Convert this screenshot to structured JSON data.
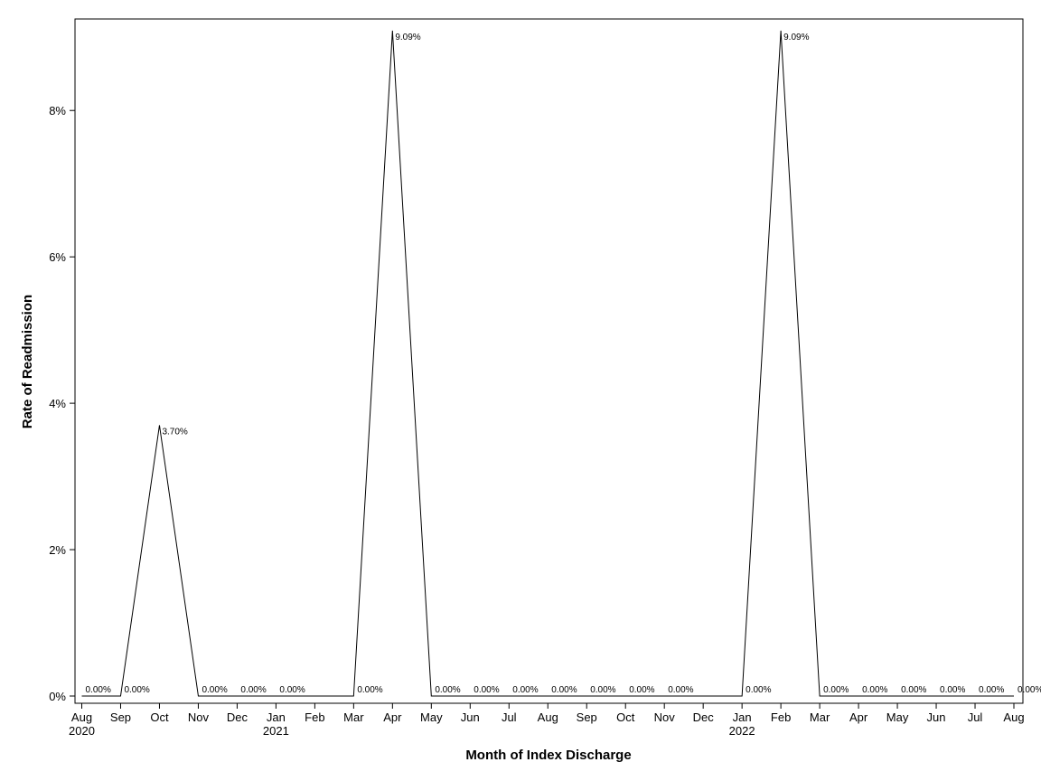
{
  "chart_data": {
    "type": "line",
    "title": "",
    "xlabel": "Month of Index Discharge",
    "ylabel": "Rate of Readmission",
    "ylim": [
      0,
      9.25
    ],
    "grid": false,
    "y_ticks": [
      "0%",
      "2%",
      "4%",
      "6%",
      "8%"
    ],
    "y_tick_values": [
      0,
      2,
      4,
      6,
      8
    ],
    "x_ticks": [
      {
        "month": "Aug",
        "year": "2020"
      },
      {
        "month": "Sep",
        "year": ""
      },
      {
        "month": "Oct",
        "year": ""
      },
      {
        "month": "Nov",
        "year": ""
      },
      {
        "month": "Dec",
        "year": ""
      },
      {
        "month": "Jan",
        "year": "2021"
      },
      {
        "month": "Feb",
        "year": ""
      },
      {
        "month": "Mar",
        "year": ""
      },
      {
        "month": "Apr",
        "year": ""
      },
      {
        "month": "May",
        "year": ""
      },
      {
        "month": "Jun",
        "year": ""
      },
      {
        "month": "Jul",
        "year": ""
      },
      {
        "month": "Aug",
        "year": ""
      },
      {
        "month": "Sep",
        "year": ""
      },
      {
        "month": "Oct",
        "year": ""
      },
      {
        "month": "Nov",
        "year": ""
      },
      {
        "month": "Dec",
        "year": ""
      },
      {
        "month": "Jan",
        "year": "2022"
      },
      {
        "month": "Feb",
        "year": ""
      },
      {
        "month": "Mar",
        "year": ""
      },
      {
        "month": "Apr",
        "year": ""
      },
      {
        "month": "May",
        "year": ""
      },
      {
        "month": "Jun",
        "year": ""
      },
      {
        "month": "Jul",
        "year": ""
      },
      {
        "month": "Aug",
        "year": ""
      }
    ],
    "series": [
      {
        "x": [
          "2020-08",
          "2020-09",
          "2020-10",
          "2020-11",
          "2020-12",
          "2021-01",
          "2021-02",
          "2021-03",
          "2021-04",
          "2021-05",
          "2021-06",
          "2021-07",
          "2021-08",
          "2021-09",
          "2021-10",
          "2021-11",
          "2021-12",
          "2022-01",
          "2022-02",
          "2022-03",
          "2022-04",
          "2022-05",
          "2022-06",
          "2022-07",
          "2022-08"
        ],
        "values": [
          0,
          0,
          3.7,
          0,
          0,
          0,
          0,
          0,
          9.09,
          0,
          0,
          0,
          0,
          0,
          0,
          0,
          0,
          0,
          9.09,
          0,
          0,
          0,
          0,
          0,
          0
        ],
        "labels": [
          "0.00%",
          "0.00%",
          "3.70%",
          "0.00%",
          "0.00%",
          "0.00%",
          "",
          "0.00%",
          "9.09%",
          "0.00%",
          "0.00%",
          "0.00%",
          "0.00%",
          "0.00%",
          "0.00%",
          "0.00%",
          "",
          "0.00%",
          "9.09%",
          "0.00%",
          "0.00%",
          "0.00%",
          "0.00%",
          "0.00%",
          "0.00%"
        ]
      }
    ]
  }
}
